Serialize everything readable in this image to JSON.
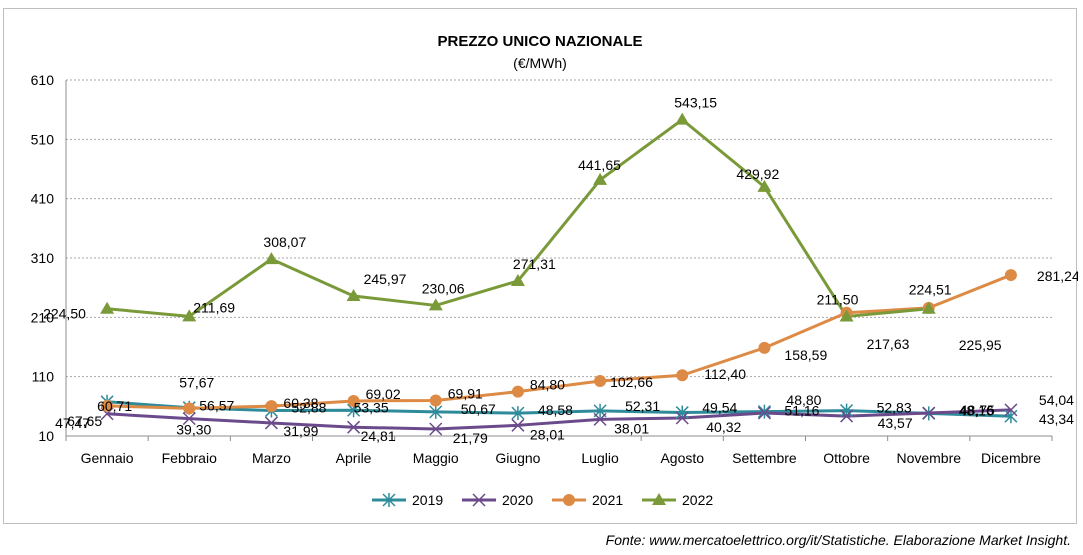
{
  "source": "Fonte: www.mercatoelettrico.org/it/Statistiche. Elaborazione Market Insight.",
  "chart_data": {
    "type": "line",
    "title": "PREZZO UNICO NAZIONALE",
    "subtitle": "(€/MWh)",
    "categories": [
      "Gennaio",
      "Febbraio",
      "Marzo",
      "Aprile",
      "Maggio",
      "Giugno",
      "Luglio",
      "Agosto",
      "Settembre",
      "Ottobre",
      "Novembre",
      "Dicembre"
    ],
    "ylim": [
      10,
      610
    ],
    "yticks": [
      "10",
      "110",
      "210",
      "310",
      "410",
      "510",
      "610"
    ],
    "grid": true,
    "legend_position": "bottom",
    "series": [
      {
        "name": "2019",
        "color": "#2e8b9a",
        "marker": "star",
        "values": [
          67.65,
          57.67,
          52.88,
          53.35,
          50.67,
          48.58,
          52.31,
          49.54,
          51.16,
          52.83,
          48.16,
          43.34
        ],
        "labels": [
          "67,65",
          "57,67",
          "52,88",
          "53,35",
          "50,67",
          "48,58",
          "52,31",
          "49,54",
          "51,16",
          "52,83",
          "48,16",
          "43,34"
        ]
      },
      {
        "name": "2020",
        "color": "#6b4a8c",
        "marker": "x",
        "values": [
          47.47,
          39.3,
          31.99,
          24.81,
          21.79,
          28.01,
          38.01,
          40.32,
          48.8,
          43.57,
          48.75,
          54.04
        ],
        "labels": [
          "47,47",
          "39,30",
          "31,99",
          "24,81",
          "21,79",
          "28,01",
          "38,01",
          "40,32",
          "48,80",
          "43,57",
          "48,75",
          "54,04"
        ]
      },
      {
        "name": "2021",
        "color": "#dd8a45",
        "marker": "circle",
        "values": [
          60.71,
          56.57,
          60.38,
          69.02,
          69.91,
          84.8,
          102.66,
          112.4,
          158.59,
          217.63,
          225.95,
          281.24
        ],
        "labels": [
          "60,71",
          "56,57",
          "60,38",
          "69,02",
          "69,91",
          "84,80",
          "102,66",
          "112,40",
          "158,59",
          "217,63",
          "225,95",
          "281,24"
        ]
      },
      {
        "name": "2022",
        "color": "#7a9a3a",
        "marker": "triangle",
        "values": [
          224.5,
          211.69,
          308.07,
          245.97,
          230.06,
          271.31,
          441.65,
          543.15,
          429.92,
          211.5,
          224.51,
          null
        ],
        "labels": [
          "224,50",
          "211,69",
          "308,07",
          "245,97",
          "230,06",
          "271,31",
          "441,65",
          "543,15",
          "429,92",
          "211,50",
          "224,51",
          ""
        ]
      }
    ]
  }
}
